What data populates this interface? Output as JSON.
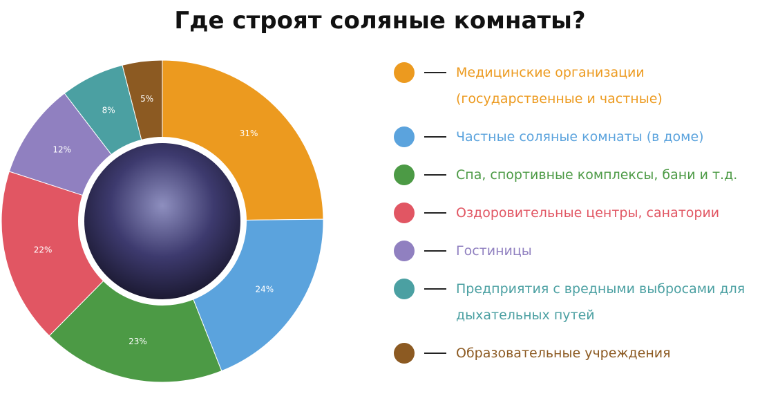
{
  "chart_data": {
    "type": "pie",
    "title": "Где строят соляные комнаты?",
    "categories": [
      "Медицинские организации (государственные и частные)",
      "Частные соляные комнаты (в доме)",
      "Спа, спортивные комплексы, бани и т.д.",
      "Оздоровительные центры, санатории",
      "Гостиницы",
      "Предприятия с вредными выбросами для дыхательных путей",
      "Образовательные учреждения"
    ],
    "values": [
      31,
      24,
      23,
      22,
      12,
      8,
      5
    ],
    "value_labels": [
      "31%",
      "24%",
      "23%",
      "22%",
      "12%",
      "8%",
      "5%"
    ],
    "colors": [
      "#ec9a1f",
      "#5ba3dd",
      "#4c9a45",
      "#e15663",
      "#9080c0",
      "#4ba0a2",
      "#8c5a22"
    ]
  }
}
